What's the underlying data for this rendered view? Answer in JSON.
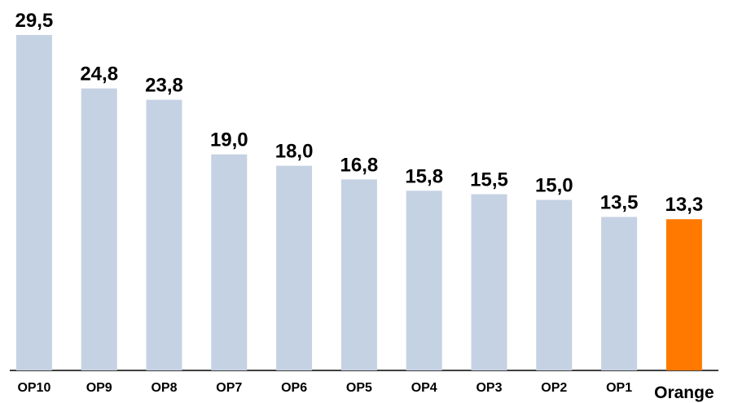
{
  "chart_data": {
    "type": "bar",
    "categories": [
      "OP10",
      "OP9",
      "OP8",
      "OP7",
      "OP6",
      "OP5",
      "OP4",
      "OP3",
      "OP2",
      "OP1",
      "Orange"
    ],
    "values": [
      29.5,
      24.8,
      23.8,
      19.0,
      18.0,
      16.8,
      15.8,
      15.5,
      15.0,
      13.5,
      13.3
    ],
    "value_labels": [
      "29,5",
      "24,8",
      "23,8",
      "19,0",
      "18,0",
      "16,8",
      "15,8",
      "15,5",
      "15,0",
      "13,5",
      "13,3"
    ],
    "colors": [
      "#c5d2e3",
      "#c5d2e3",
      "#c5d2e3",
      "#c5d2e3",
      "#c5d2e3",
      "#c5d2e3",
      "#c5d2e3",
      "#c5d2e3",
      "#c5d2e3",
      "#c5d2e3",
      "#ff7900"
    ],
    "ylim": [
      0,
      30
    ]
  }
}
